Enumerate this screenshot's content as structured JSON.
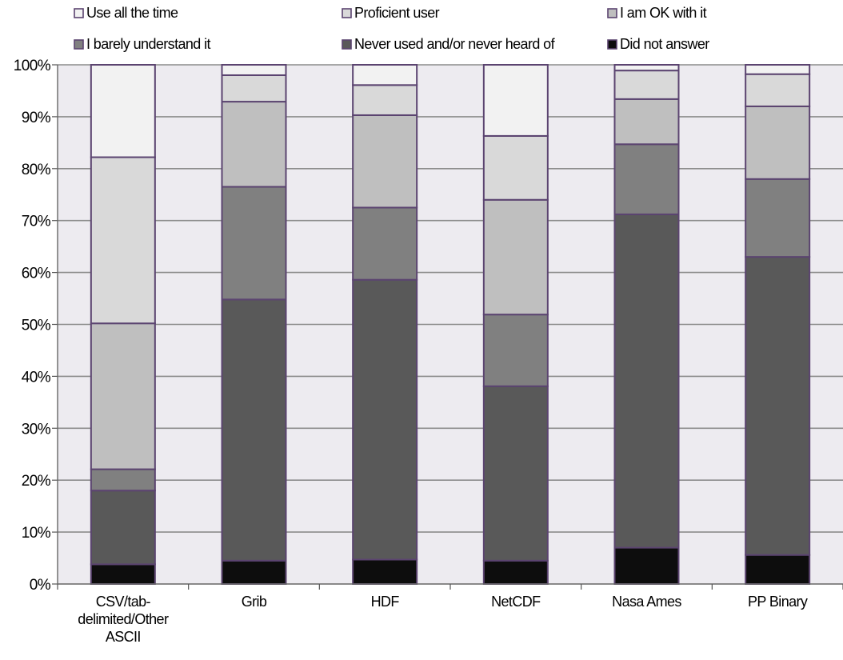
{
  "chart_data": {
    "type": "bar",
    "stacked": true,
    "percent": true,
    "categories": [
      [
        "CSV/tab-",
        "delimited/Other",
        "ASCII"
      ],
      [
        "Grib"
      ],
      [
        "HDF"
      ],
      [
        "NetCDF"
      ],
      [
        "Nasa Ames"
      ],
      [
        "PP Binary"
      ]
    ],
    "series": [
      {
        "name": "Did not answer",
        "color": "#0d0d0d",
        "values": [
          3.8,
          4.5,
          4.7,
          4.5,
          7.0,
          5.6
        ]
      },
      {
        "name": "Never used and/or never heard of",
        "color": "#595959",
        "values": [
          14.2,
          50.3,
          53.9,
          33.6,
          64.2,
          57.4
        ]
      },
      {
        "name": "I barely understand it",
        "color": "#808080",
        "values": [
          4.1,
          21.7,
          13.9,
          13.8,
          13.5,
          15.0
        ]
      },
      {
        "name": "I am OK with it",
        "color": "#bfbfbf",
        "values": [
          28.1,
          16.4,
          17.8,
          22.1,
          8.7,
          14.0
        ]
      },
      {
        "name": "Proficient user",
        "color": "#d9d9d9",
        "values": [
          32.0,
          5.1,
          5.8,
          12.3,
          5.5,
          6.2
        ]
      },
      {
        "name": "Use all the time",
        "color": "#f2f2f2",
        "values": [
          17.8,
          2.0,
          3.9,
          13.7,
          1.1,
          1.8
        ]
      }
    ],
    "legend_order": [
      "Use all the time",
      "Proficient user",
      "I am OK with it",
      "I barely understand it",
      "Never used and/or never heard of",
      "Did not answer"
    ],
    "y_ticks": [
      "0%",
      "10%",
      "20%",
      "30%",
      "40%",
      "50%",
      "60%",
      "70%",
      "80%",
      "90%",
      "100%"
    ],
    "ylim": [
      0,
      100
    ],
    "grid": true,
    "legend_position": "top",
    "plot_background": "#edebf0",
    "gridline_color": "#8c8c8c",
    "bar_border_color": "#5b4470"
  }
}
